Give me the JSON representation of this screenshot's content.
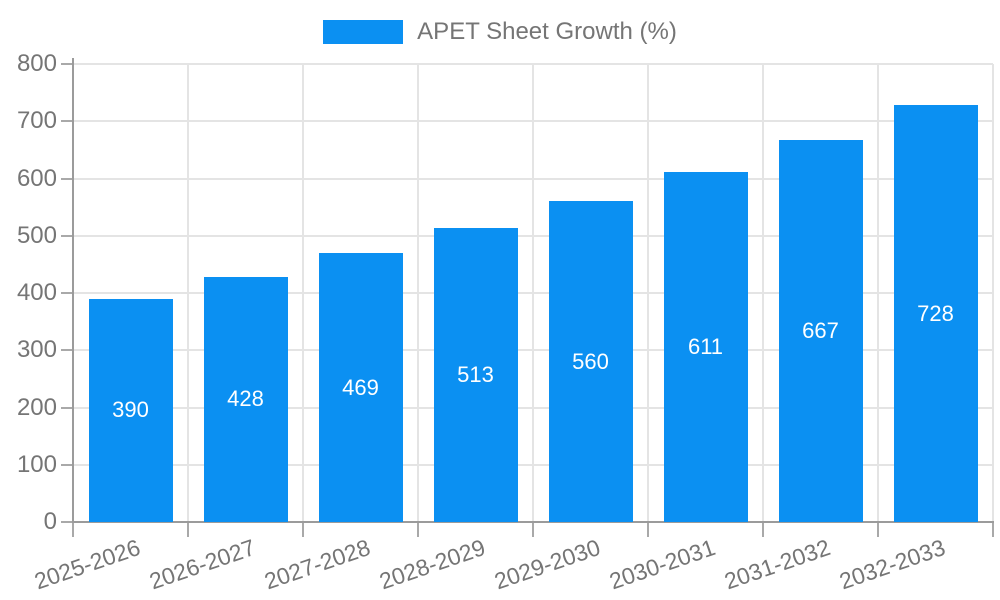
{
  "chart_data": {
    "type": "bar",
    "title": "",
    "legend": [
      "APET Sheet Growth (%)"
    ],
    "legend_position": "top",
    "categories": [
      "2025-2026",
      "2026-2027",
      "2027-2028",
      "2028-2029",
      "2029-2030",
      "2030-2031",
      "2031-2032",
      "2032-2033"
    ],
    "series": [
      {
        "name": "APET Sheet Growth (%)",
        "values": [
          390,
          428,
          469,
          513,
          560,
          611,
          667,
          728
        ]
      }
    ],
    "value_labels_shown": true,
    "xlabel": "",
    "ylabel": "",
    "ylim": [
      0,
      800
    ],
    "ytick_step": 100,
    "yticks": [
      "0",
      "100",
      "200",
      "300",
      "400",
      "500",
      "600",
      "700",
      "800"
    ],
    "grid": true,
    "colors": {
      "bar": "#0b90f2",
      "value_label": "#ffffff",
      "axis_text": "#757575",
      "gridline": "#e4e4e4",
      "axis_line": "#9b9b9b",
      "tick": "#a9a9a9"
    }
  }
}
